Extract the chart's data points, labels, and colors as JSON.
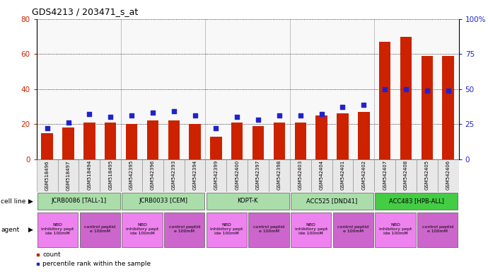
{
  "title": "GDS4213 / 203471_s_at",
  "samples": [
    "GSM518496",
    "GSM518497",
    "GSM518494",
    "GSM518495",
    "GSM542395",
    "GSM542396",
    "GSM542393",
    "GSM542394",
    "GSM542399",
    "GSM542400",
    "GSM542397",
    "GSM542398",
    "GSM542403",
    "GSM542404",
    "GSM542401",
    "GSM542402",
    "GSM542407",
    "GSM542408",
    "GSM542405",
    "GSM542406"
  ],
  "bar_values": [
    15,
    18,
    21,
    21,
    20,
    22,
    22,
    20,
    13,
    21,
    19,
    21,
    21,
    25,
    26,
    27,
    67,
    70,
    59,
    59
  ],
  "dot_values": [
    22,
    26,
    32,
    30,
    31,
    33,
    34,
    31,
    22,
    30,
    28,
    31,
    31,
    32,
    37,
    39,
    50,
    50,
    49,
    49
  ],
  "cell_lines": [
    {
      "label": "JCRB0086 [TALL-1]",
      "start": 0,
      "end": 4,
      "color": "#aaddaa"
    },
    {
      "label": "JCRB0033 [CEM]",
      "start": 4,
      "end": 8,
      "color": "#aaddaa"
    },
    {
      "label": "KOPT-K",
      "start": 8,
      "end": 12,
      "color": "#aaddaa"
    },
    {
      "label": "ACC525 [DND41]",
      "start": 12,
      "end": 16,
      "color": "#aaddaa"
    },
    {
      "label": "ACC483 [HPB-ALL]",
      "start": 16,
      "end": 20,
      "color": "#44cc44"
    }
  ],
  "agents": [
    {
      "label": "NBD\ninhibitory pept\nide 100mM",
      "start": 0,
      "end": 2,
      "color": "#ee82ee"
    },
    {
      "label": "control peptid\ne 100mM",
      "start": 2,
      "end": 4,
      "color": "#cc66cc"
    },
    {
      "label": "NBD\ninhibitory pept\nide 100mM",
      "start": 4,
      "end": 6,
      "color": "#ee82ee"
    },
    {
      "label": "control peptid\ne 100mM",
      "start": 6,
      "end": 8,
      "color": "#cc66cc"
    },
    {
      "label": "NBD\ninhibitory pept\nide 100mM",
      "start": 8,
      "end": 10,
      "color": "#ee82ee"
    },
    {
      "label": "control peptid\ne 100mM",
      "start": 10,
      "end": 12,
      "color": "#cc66cc"
    },
    {
      "label": "NBD\ninhibitory pept\nide 100mM",
      "start": 12,
      "end": 14,
      "color": "#ee82ee"
    },
    {
      "label": "control peptid\ne 100mM",
      "start": 14,
      "end": 16,
      "color": "#cc66cc"
    },
    {
      "label": "NBD\ninhibitory pept\nide 100mM",
      "start": 16,
      "end": 18,
      "color": "#ee82ee"
    },
    {
      "label": "control peptid\ne 100mM",
      "start": 18,
      "end": 20,
      "color": "#cc66cc"
    }
  ],
  "ylim_left": [
    0,
    80
  ],
  "ylim_right": [
    0,
    100
  ],
  "yticks_left": [
    0,
    20,
    40,
    60,
    80
  ],
  "yticks_right": [
    0,
    25,
    50,
    75,
    100
  ],
  "bar_color": "#cc2200",
  "dot_color": "#2222cc",
  "plot_bg": "#f8f8f8",
  "group_boundaries": [
    4,
    8,
    12,
    16
  ]
}
